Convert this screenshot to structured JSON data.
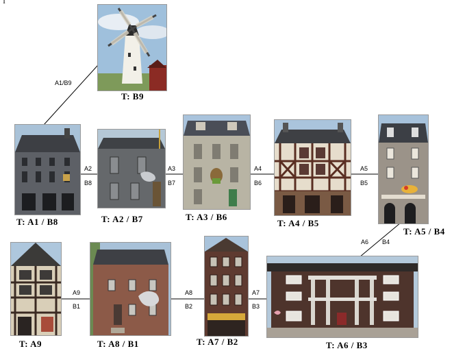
{
  "corner_mark": "T",
  "nodes": [
    {
      "id": "windmill",
      "caption": "T:  B9"
    },
    {
      "id": "a1",
      "caption": "T:  A1  /  B8"
    },
    {
      "id": "a2",
      "caption": "T:  A2  /  B7"
    },
    {
      "id": "a3",
      "caption": "T:  A3  /  B6"
    },
    {
      "id": "a4",
      "caption": "T:  A4  /  B5"
    },
    {
      "id": "a5",
      "caption": "T:  A5  /  B4"
    },
    {
      "id": "a9",
      "caption": "T:  A9"
    },
    {
      "id": "a8",
      "caption": "T:  A8  /  B1"
    },
    {
      "id": "a7",
      "caption": "T:  A7  /  B2"
    },
    {
      "id": "a6",
      "caption": "T:  A6  /  B3"
    }
  ],
  "edges": [
    {
      "top": "A1/B9",
      "bottom": ""
    },
    {
      "top": "A2",
      "bottom": "B8"
    },
    {
      "top": "A3",
      "bottom": "B7"
    },
    {
      "top": "A4",
      "bottom": "B6"
    },
    {
      "top": "A5",
      "bottom": "B5"
    },
    {
      "top": "A6",
      "bottom": "B4"
    },
    {
      "top": "A7",
      "bottom": "B3"
    },
    {
      "top": "A8",
      "bottom": "B2"
    },
    {
      "top": "A9",
      "bottom": "B1"
    }
  ]
}
